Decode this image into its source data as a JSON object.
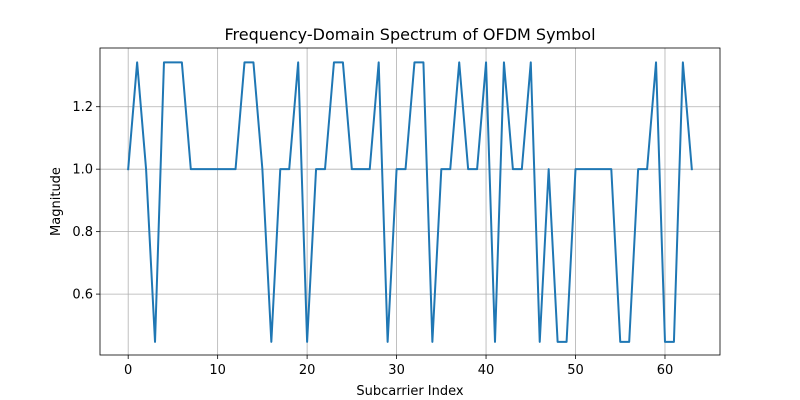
{
  "chart_data": {
    "type": "line",
    "title": "Frequency-Domain Spectrum of OFDM Symbol",
    "xlabel": "Subcarrier Index",
    "ylabel": "Magnitude",
    "xlim": [
      -3.15,
      66.15
    ],
    "ylim": [
      0.405,
      1.388
    ],
    "xticks": [
      0,
      10,
      20,
      30,
      40,
      50,
      60
    ],
    "yticks": [
      0.6,
      0.8,
      1.0,
      1.2
    ],
    "ytick_labels": [
      "0.6",
      "0.8",
      "1.0",
      "1.2"
    ],
    "grid": true,
    "series": [
      {
        "color": "#1f77b4",
        "x": [
          0,
          1,
          2,
          3,
          4,
          5,
          6,
          7,
          8,
          9,
          10,
          11,
          12,
          13,
          14,
          15,
          16,
          17,
          18,
          19,
          20,
          21,
          22,
          23,
          24,
          25,
          26,
          27,
          28,
          29,
          30,
          31,
          32,
          33,
          34,
          35,
          36,
          37,
          38,
          39,
          40,
          41,
          42,
          43,
          44,
          45,
          46,
          47,
          48,
          49,
          50,
          51,
          52,
          53,
          54,
          55,
          56,
          57,
          58,
          59,
          60,
          61,
          62,
          63
        ],
        "values": [
          1.0,
          1.342,
          1.0,
          0.447,
          1.342,
          1.342,
          1.342,
          1.0,
          1.0,
          1.0,
          1.0,
          1.0,
          1.0,
          1.342,
          1.342,
          1.0,
          0.447,
          1.0,
          1.0,
          1.342,
          0.447,
          1.0,
          1.0,
          1.342,
          1.342,
          1.0,
          1.0,
          1.0,
          1.342,
          0.447,
          1.0,
          1.0,
          1.342,
          1.342,
          0.447,
          1.0,
          1.0,
          1.342,
          1.0,
          1.0,
          1.342,
          0.447,
          1.342,
          1.0,
          1.0,
          1.342,
          0.447,
          1.0,
          0.447,
          0.447,
          1.0,
          1.0,
          1.0,
          1.0,
          1.0,
          0.447,
          0.447,
          1.0,
          1.0,
          1.342,
          0.447,
          0.447,
          1.342,
          1.0
        ]
      }
    ]
  }
}
